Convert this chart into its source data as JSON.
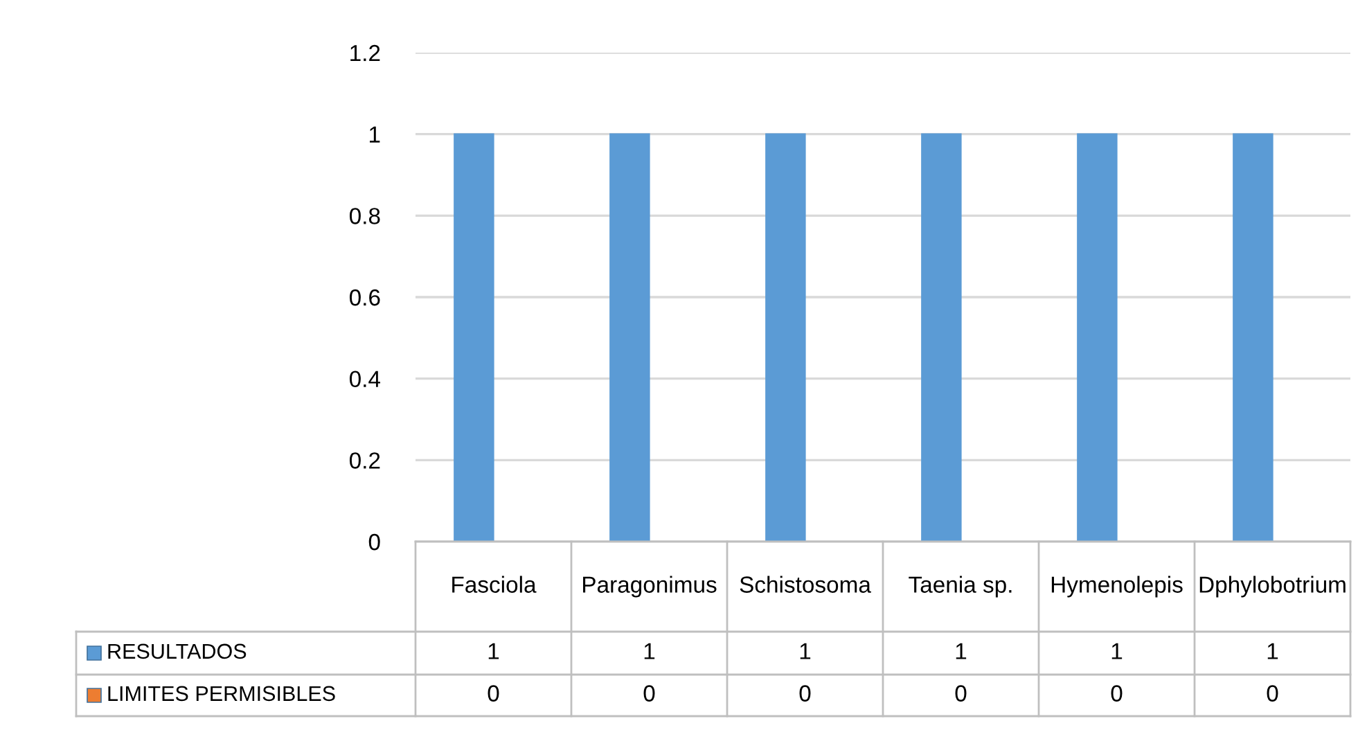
{
  "chart_data": {
    "type": "bar",
    "categories": [
      "Fasciola",
      "Paragonimus",
      "Schistosoma",
      "Taenia sp.",
      "Hymenolepis",
      "Dphylobotrium"
    ],
    "series": [
      {
        "name": "RESULTADOS",
        "color": "#5b9bd5",
        "values": [
          1,
          1,
          1,
          1,
          1,
          1
        ]
      },
      {
        "name": "LIMITES PERMISIBLES",
        "color": "#ed7d31",
        "values": [
          0,
          0,
          0,
          0,
          0,
          0
        ]
      }
    ],
    "ylim": [
      0,
      1.2
    ],
    "yticks": [
      0,
      0.2,
      0.4,
      0.6,
      0.8,
      1,
      1.2
    ],
    "grid": "y",
    "legend": "bottom left",
    "data_labels": true
  }
}
